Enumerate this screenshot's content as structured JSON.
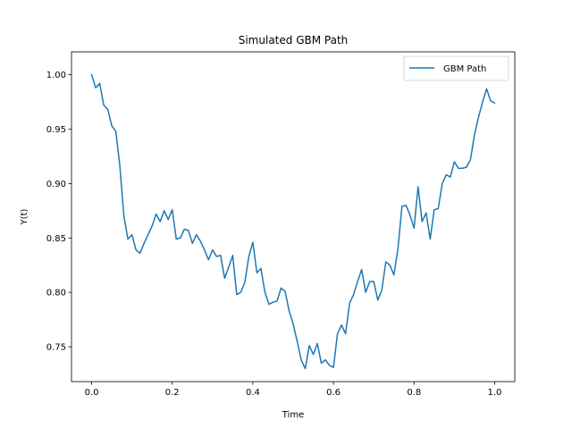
{
  "chart_data": {
    "type": "line",
    "title": "Simulated GBM Path",
    "xlabel": "Time",
    "ylabel": "Y(t)",
    "xlim": [
      -0.05,
      1.05
    ],
    "ylim": [
      0.718,
      1.021
    ],
    "xticks": [
      0.0,
      0.2,
      0.4,
      0.6,
      0.8,
      1.0
    ],
    "xtick_labels": [
      "0.0",
      "0.2",
      "0.4",
      "0.6",
      "0.8",
      "1.0"
    ],
    "yticks": [
      0.75,
      0.8,
      0.85,
      0.9,
      0.95,
      1.0
    ],
    "ytick_labels": [
      "0.75",
      "0.80",
      "0.85",
      "0.90",
      "0.95",
      "1.00"
    ],
    "grid": false,
    "legend": {
      "position": "top-right"
    },
    "series": [
      {
        "name": "GBM Path",
        "color": "#1f77b4",
        "x": [
          0.0,
          0.01,
          0.02,
          0.03,
          0.04,
          0.05,
          0.06,
          0.07,
          0.08,
          0.09,
          0.1,
          0.11,
          0.12,
          0.13,
          0.14,
          0.15,
          0.16,
          0.17,
          0.18,
          0.19,
          0.2,
          0.21,
          0.22,
          0.23,
          0.24,
          0.25,
          0.26,
          0.27,
          0.28,
          0.29,
          0.3,
          0.31,
          0.32,
          0.33,
          0.34,
          0.35,
          0.36,
          0.37,
          0.38,
          0.39,
          0.4,
          0.41,
          0.42,
          0.43,
          0.44,
          0.45,
          0.46,
          0.47,
          0.48,
          0.49,
          0.5,
          0.51,
          0.52,
          0.53,
          0.54,
          0.55,
          0.56,
          0.57,
          0.58,
          0.59,
          0.6,
          0.61,
          0.62,
          0.63,
          0.64,
          0.65,
          0.66,
          0.67,
          0.68,
          0.69,
          0.7,
          0.71,
          0.72,
          0.73,
          0.74,
          0.75,
          0.76,
          0.77,
          0.78,
          0.79,
          0.8,
          0.81,
          0.82,
          0.83,
          0.84,
          0.85,
          0.86,
          0.87,
          0.88,
          0.89,
          0.9,
          0.91,
          0.92,
          0.93,
          0.94,
          0.95,
          0.96,
          0.97,
          0.98,
          0.99,
          1.0
        ],
        "y": [
          1.0,
          0.988,
          0.992,
          0.972,
          0.968,
          0.953,
          0.948,
          0.916,
          0.87,
          0.849,
          0.853,
          0.839,
          0.836,
          0.845,
          0.853,
          0.861,
          0.872,
          0.865,
          0.875,
          0.867,
          0.876,
          0.849,
          0.85,
          0.858,
          0.857,
          0.845,
          0.853,
          0.847,
          0.839,
          0.83,
          0.839,
          0.833,
          0.834,
          0.813,
          0.823,
          0.834,
          0.798,
          0.8,
          0.809,
          0.833,
          0.846,
          0.818,
          0.822,
          0.8,
          0.789,
          0.791,
          0.792,
          0.804,
          0.801,
          0.783,
          0.771,
          0.755,
          0.738,
          0.73,
          0.751,
          0.743,
          0.753,
          0.735,
          0.738,
          0.733,
          0.731,
          0.762,
          0.77,
          0.762,
          0.79,
          0.798,
          0.81,
          0.821,
          0.8,
          0.81,
          0.81,
          0.793,
          0.802,
          0.828,
          0.825,
          0.816,
          0.84,
          0.879,
          0.88,
          0.871,
          0.859,
          0.897,
          0.865,
          0.873,
          0.849,
          0.876,
          0.877,
          0.9,
          0.908,
          0.906,
          0.92,
          0.914,
          0.914,
          0.915,
          0.922,
          0.945,
          0.961,
          0.975,
          0.987,
          0.976,
          0.974
        ]
      }
    ]
  }
}
